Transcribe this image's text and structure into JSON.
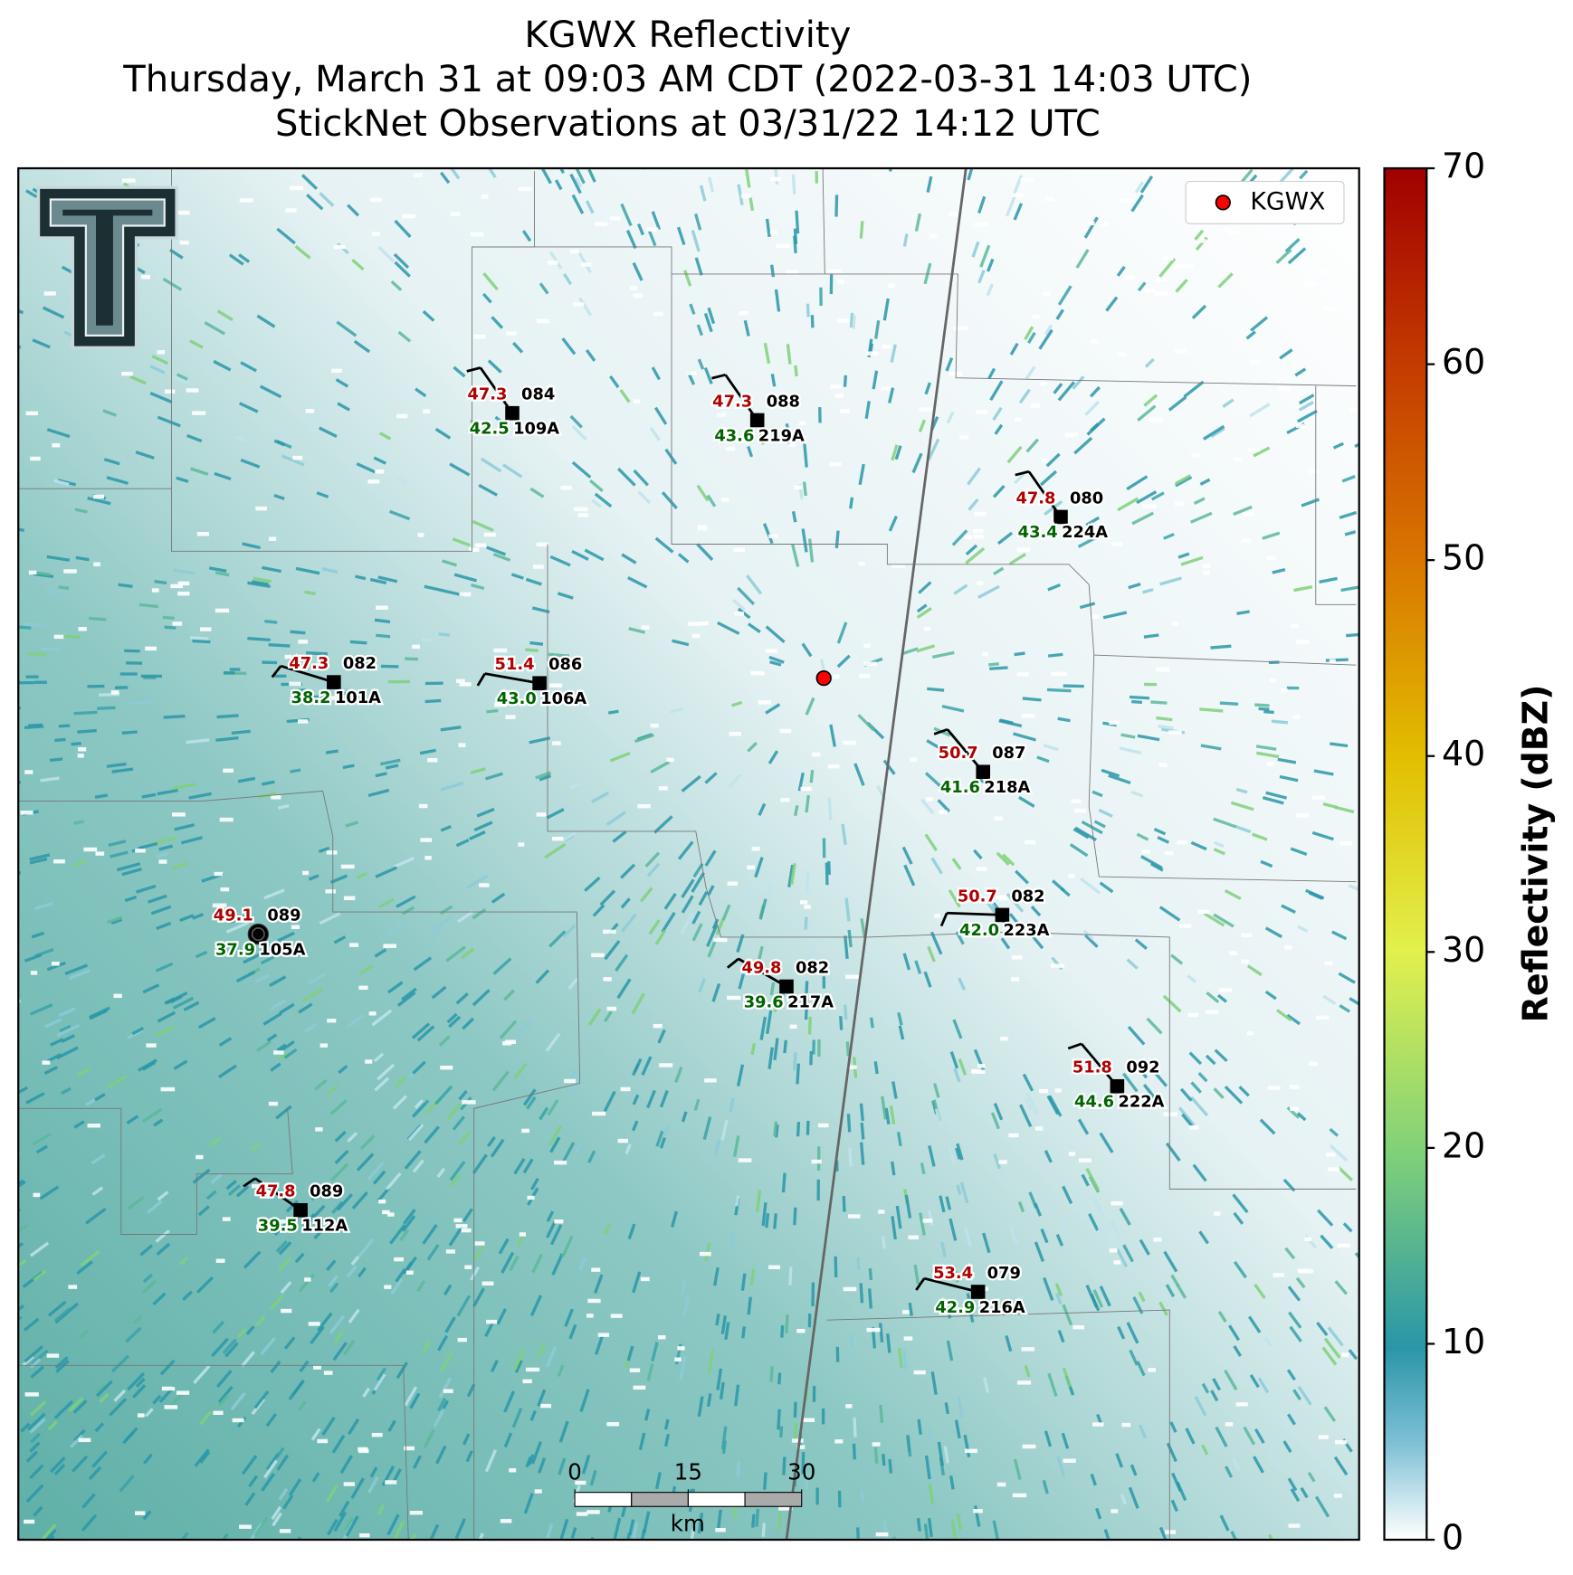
{
  "header": {
    "title": "KGWX Reflectivity",
    "subtitle": "Thursday, March 31 at 09:03 AM CDT (2022-03-31 14:03 UTC)",
    "observations": "StickNet Observations at 03/31/22 14:12 UTC"
  },
  "legend": {
    "label": "KGWX",
    "color": "#ff0000"
  },
  "colorbar": {
    "label": "Reflectivity (dBZ)",
    "lim": [
      0,
      70
    ],
    "ticks": [
      0,
      10,
      20,
      30,
      40,
      50,
      60,
      70
    ]
  },
  "scale_bar": {
    "ticks": [
      0,
      15,
      30
    ],
    "unit": "km"
  },
  "stations": [
    {
      "id": "109A",
      "temperature": "47.3",
      "dewpoint": "42.5",
      "direction": "084"
    },
    {
      "id": "219A",
      "temperature": "47.3",
      "dewpoint": "43.6",
      "direction": "088"
    },
    {
      "id": "224A",
      "temperature": "47.8",
      "dewpoint": "43.4",
      "direction": "080"
    },
    {
      "id": "101A",
      "temperature": "47.3",
      "dewpoint": "38.2",
      "direction": "082"
    },
    {
      "id": "106A",
      "temperature": "51.4",
      "dewpoint": "43.0",
      "direction": "086"
    },
    {
      "id": "218A",
      "temperature": "50.7",
      "dewpoint": "41.6",
      "direction": "087"
    },
    {
      "id": "223A",
      "temperature": "50.7",
      "dewpoint": "42.0",
      "direction": "082"
    },
    {
      "id": "105A",
      "temperature": "49.1",
      "dewpoint": "37.9",
      "direction": "089"
    },
    {
      "id": "217A",
      "temperature": "49.8",
      "dewpoint": "39.6",
      "direction": "082"
    },
    {
      "id": "222A",
      "temperature": "51.8",
      "dewpoint": "44.6",
      "direction": "092"
    },
    {
      "id": "112A",
      "temperature": "47.8",
      "dewpoint": "39.5",
      "direction": "089"
    },
    {
      "id": "216A",
      "temperature": "53.4",
      "dewpoint": "42.9",
      "direction": "079"
    }
  ]
}
